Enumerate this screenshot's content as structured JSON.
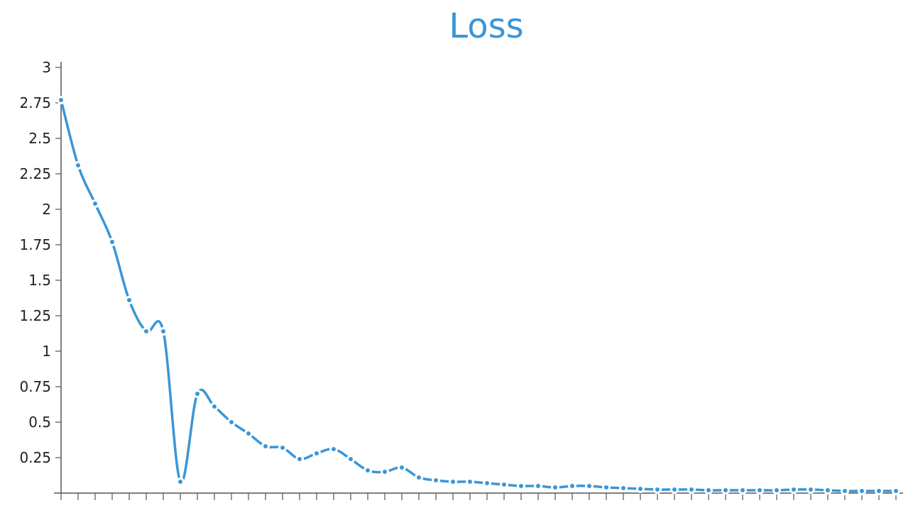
{
  "chart_data": {
    "type": "line",
    "title": "Loss",
    "xlabel": "",
    "ylabel": "",
    "ylim": [
      0,
      3
    ],
    "yticks": [
      0.25,
      0.5,
      0.75,
      1,
      1.25,
      1.5,
      1.75,
      2,
      2.25,
      2.5,
      2.75,
      3
    ],
    "ytick_labels": [
      "0.25",
      "0.5",
      "0.75",
      "1",
      "1.25",
      "1.5",
      "1.75",
      "2",
      "2.25",
      "2.5",
      "2.75",
      "3"
    ],
    "grid": false,
    "legend": "none",
    "color": "#3a96d6",
    "x": [
      0,
      1,
      2,
      3,
      4,
      5,
      6,
      7,
      8,
      9,
      10,
      11,
      12,
      13,
      14,
      15,
      16,
      17,
      18,
      19,
      20,
      21,
      22,
      23,
      24,
      25,
      26,
      27,
      28,
      29,
      30,
      31,
      32,
      33,
      34,
      35,
      36,
      37,
      38,
      39,
      40,
      41,
      42,
      43,
      44,
      45,
      46,
      47,
      48,
      49
    ],
    "values": [
      2.77,
      2.31,
      2.04,
      1.77,
      1.36,
      1.14,
      1.14,
      0.08,
      0.7,
      0.61,
      0.5,
      0.42,
      0.33,
      0.32,
      0.24,
      0.28,
      0.31,
      0.24,
      0.16,
      0.15,
      0.18,
      0.11,
      0.09,
      0.08,
      0.08,
      0.07,
      0.06,
      0.05,
      0.05,
      0.04,
      0.05,
      0.05,
      0.04,
      0.035,
      0.03,
      0.025,
      0.025,
      0.025,
      0.02,
      0.02,
      0.02,
      0.02,
      0.02,
      0.025,
      0.025,
      0.02,
      0.015,
      0.015,
      0.015,
      0.015
    ]
  }
}
